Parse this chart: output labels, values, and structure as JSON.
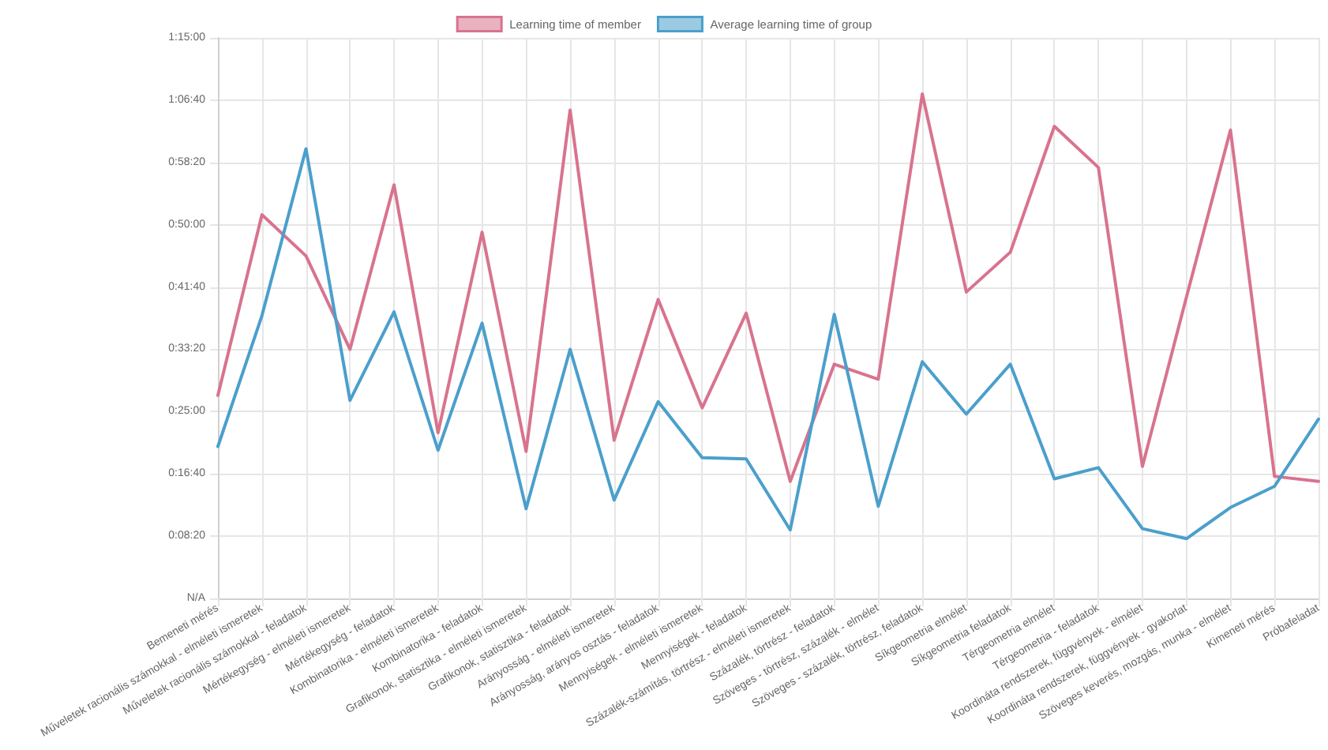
{
  "chart_data": {
    "type": "line",
    "categories": [
      "Bemeneti mérés",
      "Műveletek racionális számokkal - elméleti ismeretek",
      "Műveletek racionális számokkal - feladatok",
      "Mértékegység - elméleti ismeretek",
      "Mértékegység - feladatok",
      "Kombinatorika - elméleti ismeretek",
      "Kombinatorika - feladatok",
      "Grafikonok, statisztika - elméleti ismeretek",
      "Grafikonok, statisztika - feladatok",
      "Arányosság - elméleti ismeretek",
      "Arányosság, arányos osztás - feladatok",
      "Mennyiségek - elméleti ismeretek",
      "Mennyiségek - feladatok",
      "Százalék-számítás, törtrész - elméleti ismeretek",
      "Százalék, törtrész - feladatok",
      "Szöveges - törtrész, százalék - elmélet",
      "Szöveges - százalék, törtrész, feladatok",
      "Síkgeometria elmélet",
      "Síkgeometria feladatok",
      "Térgeometria elmélet",
      "Térgeometria - feladatok",
      "Koordináta rendszerek, függvények - elmélet",
      "Koordináta rendszerek, függvények - gyakorlat",
      "Szöveges keverés, mozgás, munka - elmélet",
      "Kimeneti mérés",
      "Próbafeladat"
    ],
    "series": [
      {
        "name": "Learning time of member",
        "color": "#d8738e",
        "values": [
          1630,
          3080,
          2750,
          2000,
          3320,
          1330,
          2940,
          1180,
          3920,
          1270,
          2400,
          1530,
          2290,
          940,
          1880,
          1760,
          4050,
          2460,
          2780,
          3790,
          3460,
          1060,
          2420,
          3760,
          980,
          940
        ]
      },
      {
        "name": "Average learning time of group",
        "color": "#4b9fcc",
        "values": [
          1220,
          2270,
          3610,
          1590,
          2300,
          1190,
          2210,
          720,
          2000,
          790,
          1580,
          1130,
          1120,
          550,
          2280,
          740,
          1900,
          1480,
          1880,
          960,
          1050,
          560,
          480,
          730,
          900,
          1440
        ]
      }
    ],
    "ylim": [
      0,
      4500
    ],
    "yticks": [
      {
        "value": 0,
        "label": "N/A"
      },
      {
        "value": 500,
        "label": "0:08:20"
      },
      {
        "value": 1000,
        "label": "0:16:40"
      },
      {
        "value": 1500,
        "label": "0:25:00"
      },
      {
        "value": 2000,
        "label": "0:33:20"
      },
      {
        "value": 2500,
        "label": "0:41:40"
      },
      {
        "value": 3000,
        "label": "0:50:00"
      },
      {
        "value": 3500,
        "label": "0:58:20"
      },
      {
        "value": 4000,
        "label": "1:06:40"
      },
      {
        "value": 4500,
        "label": "1:15:00"
      }
    ],
    "grid": true,
    "legend": "top",
    "marker": "none",
    "line_style": "solid"
  }
}
